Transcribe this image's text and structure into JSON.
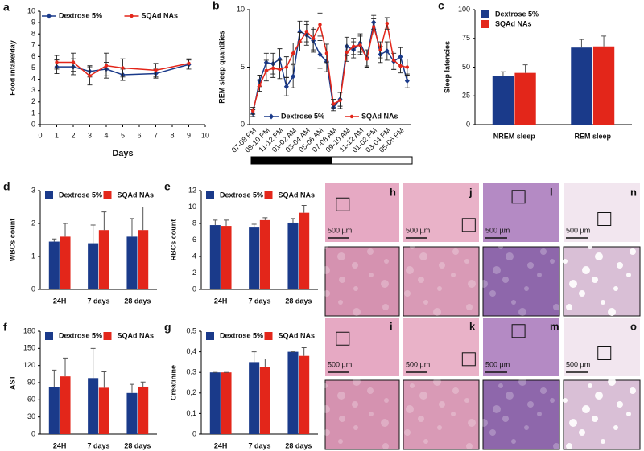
{
  "chart_data": [
    {
      "type": "line",
      "panel": "a",
      "ylabel": "Food intake/day",
      "xlabel": "Days",
      "x": [
        1,
        2,
        3,
        4,
        5,
        7,
        9
      ],
      "xlim": [
        0,
        10
      ],
      "xticks": [
        0,
        1,
        2,
        3,
        4,
        5,
        6,
        7,
        8,
        9,
        10
      ],
      "ylim": [
        0,
        10
      ],
      "yticks": [
        0,
        1,
        2,
        3,
        4,
        5,
        6,
        7,
        8,
        9,
        10
      ],
      "legend": "top",
      "series": [
        {
          "name": "Dextrose 5%",
          "color": "#1a3a8a",
          "values": [
            5.1,
            5.1,
            4.7,
            4.9,
            4.4,
            4.5,
            5.3
          ],
          "errors": [
            0.6,
            0.7,
            0.5,
            0.6,
            0.5,
            0.4,
            0.4
          ]
        },
        {
          "name": "SQAd NAs",
          "color": "#e3261a",
          "values": [
            5.5,
            5.5,
            4.3,
            5.2,
            5.0,
            4.8,
            5.4
          ],
          "errors": [
            0.6,
            0.8,
            0.8,
            1.1,
            0.8,
            0.6,
            0.4
          ]
        }
      ]
    },
    {
      "type": "line",
      "panel": "b",
      "ylabel": "REM sleep quantities",
      "categories": [
        "07-08 PM",
        null,
        "09-10 PM",
        null,
        "11-12 PM",
        null,
        "01-02 AM",
        null,
        "03-04 AM",
        null,
        "05-06 AM",
        null,
        "07-08 AM",
        null,
        "09-10 AM",
        null,
        "11-12 AM",
        null,
        "01-02 PM",
        null,
        "03-04 PM",
        null,
        "05-06 PM",
        null
      ],
      "ylim": [
        0,
        10
      ],
      "yticks": [
        0,
        5,
        10
      ],
      "legend": "bottom",
      "xtick_rotation": 45,
      "series": [
        {
          "name": "Dextrose 5%",
          "color": "#1a3a8a",
          "values": [
            1.0,
            3.8,
            5.4,
            5.3,
            5.7,
            3.3,
            4.2,
            8.1,
            7.8,
            7.3,
            6.1,
            5.5,
            1.5,
            2.2,
            6.8,
            6.5,
            7.1,
            5.8,
            8.9,
            6.1,
            6.4,
            5.5,
            5.9,
            3.8
          ],
          "errors": [
            0.3,
            0.5,
            0.8,
            0.9,
            0.9,
            0.8,
            1.0,
            0.9,
            0.9,
            1.0,
            1.2,
            0.9,
            0.3,
            0.6,
            0.8,
            0.7,
            0.8,
            0.7,
            0.6,
            0.7,
            0.8,
            0.7,
            0.8,
            0.6
          ]
        },
        {
          "name": "SQAd NAs",
          "color": "#e3261a",
          "values": [
            1.2,
            3.4,
            4.7,
            4.9,
            4.8,
            5.0,
            6.2,
            7.2,
            8.1,
            7.5,
            8.7,
            6.2,
            1.8,
            2.1,
            6.3,
            6.8,
            6.9,
            5.7,
            8.5,
            6.5,
            8.8,
            5.6,
            5.1,
            5.0
          ],
          "errors": [
            0.3,
            0.5,
            0.9,
            0.8,
            0.8,
            0.9,
            0.9,
            0.8,
            0.9,
            1.0,
            1.0,
            0.8,
            0.4,
            0.7,
            0.8,
            0.7,
            0.8,
            0.7,
            0.7,
            0.7,
            0.5,
            0.8,
            0.6,
            0.7
          ]
        }
      ]
    },
    {
      "type": "bar",
      "panel": "c",
      "ylabel": "Sleep latencies",
      "categories": [
        "NREM sleep",
        "REM sleep"
      ],
      "ylim": [
        0,
        100
      ],
      "yticks": [
        0,
        25,
        50,
        75,
        100
      ],
      "legend": "upper left",
      "series": [
        {
          "name": "Dextrose 5%",
          "color": "#1a3a8a",
          "values": [
            42,
            67
          ],
          "errors": [
            4,
            7
          ]
        },
        {
          "name": "SQAd NAs",
          "color": "#e3261a",
          "values": [
            45,
            68
          ],
          "errors": [
            7,
            9
          ]
        }
      ]
    },
    {
      "type": "bar",
      "panel": "d",
      "ylabel": "WBCs count",
      "categories": [
        "24H",
        "7 days",
        "28 days"
      ],
      "ylim": [
        0,
        3
      ],
      "yticks": [
        0,
        1,
        2,
        3
      ],
      "legend": "top",
      "series": [
        {
          "name": "Dextrose 5%",
          "color": "#1a3a8a",
          "values": [
            1.45,
            1.4,
            1.6
          ],
          "errors": [
            0.08,
            0.55,
            0.55
          ]
        },
        {
          "name": "SQAd NAs",
          "color": "#e3261a",
          "values": [
            1.6,
            1.8,
            1.8
          ],
          "errors": [
            0.4,
            0.55,
            0.7
          ]
        }
      ]
    },
    {
      "type": "bar",
      "panel": "e",
      "ylabel": "RBCs count",
      "categories": [
        "24H",
        "7 days",
        "28 days"
      ],
      "ylim": [
        0,
        12
      ],
      "yticks": [
        0,
        2,
        4,
        6,
        8,
        10,
        12
      ],
      "legend": "top",
      "series": [
        {
          "name": "Dextrose 5%",
          "color": "#1a3a8a",
          "values": [
            7.8,
            7.6,
            8.1
          ],
          "errors": [
            0.6,
            0.3,
            0.5
          ]
        },
        {
          "name": "SQAd NAs",
          "color": "#e3261a",
          "values": [
            7.7,
            8.4,
            9.3
          ],
          "errors": [
            0.7,
            0.3,
            0.9
          ]
        }
      ]
    },
    {
      "type": "bar",
      "panel": "f",
      "ylabel": "AST",
      "categories": [
        "24H",
        "7 days",
        "28 days"
      ],
      "ylim": [
        0,
        180
      ],
      "yticks": [
        0,
        30,
        60,
        90,
        120,
        150,
        180
      ],
      "legend": "top",
      "series": [
        {
          "name": "Dextrose 5%",
          "color": "#1a3a8a",
          "values": [
            82,
            98,
            72
          ],
          "errors": [
            30,
            52,
            15
          ]
        },
        {
          "name": "SQAd NAs",
          "color": "#e3261a",
          "values": [
            101,
            81,
            83
          ],
          "errors": [
            32,
            28,
            8
          ]
        }
      ]
    },
    {
      "type": "bar",
      "panel": "g",
      "ylabel": "Creatinine",
      "categories": [
        "24H",
        "7 days",
        "28 days"
      ],
      "ylim": [
        0,
        0.5
      ],
      "yticks": [
        0,
        {
          "value": 0.1,
          "label": "0,1"
        },
        {
          "value": 0.2,
          "label": "0,2"
        },
        {
          "value": 0.3,
          "label": "0,3"
        },
        {
          "value": 0.4,
          "label": "0,4"
        },
        {
          "value": 0.5,
          "label": "0,5"
        }
      ],
      "legend": "top",
      "series": [
        {
          "name": "Dextrose 5%",
          "color": "#1a3a8a",
          "values": [
            0.3,
            0.35,
            0.4
          ],
          "errors": [
            0,
            0.05,
            0
          ]
        },
        {
          "name": "SQAd NAs",
          "color": "#e3261a",
          "values": [
            0.3,
            0.325,
            0.38
          ],
          "errors": [
            0,
            0.04,
            0.04
          ]
        }
      ]
    }
  ],
  "histology": {
    "panels": [
      {
        "label": "h",
        "scale_bar": "500 µm"
      },
      {
        "label": "j",
        "scale_bar": "500 µm"
      },
      {
        "label": "l",
        "scale_bar": "500 µm"
      },
      {
        "label": "n",
        "scale_bar": "500 µm"
      },
      {
        "label": "i",
        "scale_bar": "500 µm"
      },
      {
        "label": "k",
        "scale_bar": "500 µm"
      },
      {
        "label": "m",
        "scale_bar": "500 µm"
      },
      {
        "label": "o",
        "scale_bar": "500 µm"
      }
    ]
  }
}
